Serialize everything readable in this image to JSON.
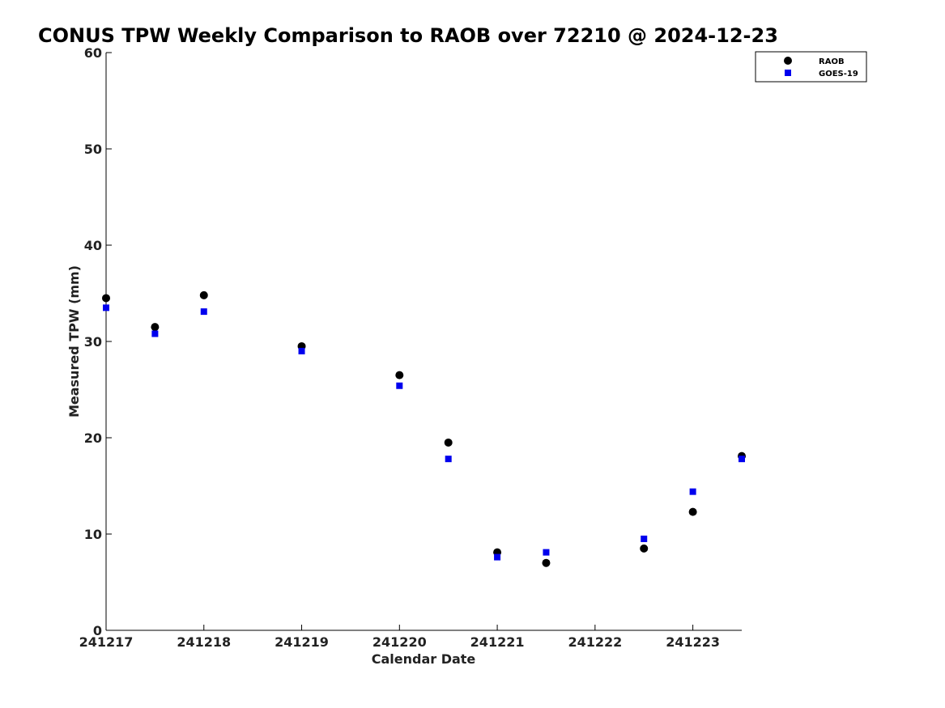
{
  "chart_data": {
    "type": "scatter",
    "title": "CONUS TPW Weekly Comparison to RAOB over 72210 @ 2024-12-23",
    "xlabel": "Calendar Date",
    "ylabel": "Measured TPW (mm)",
    "xlim": [
      "2024-12-17",
      "2024-12-23 12:00"
    ],
    "ylim": [
      0,
      60
    ],
    "x_ticks": [
      "241217",
      "241218",
      "241219",
      "241220",
      "241221",
      "241222",
      "241223"
    ],
    "y_ticks": [
      "0",
      "10",
      "20",
      "30",
      "40",
      "50",
      "60"
    ],
    "grid": false,
    "legend": {
      "position": "top-right"
    },
    "series": [
      {
        "name": "RAOB",
        "marker": "circle",
        "color": "#000000",
        "points": [
          {
            "x": "2024-12-17 00:00",
            "y": 34.5
          },
          {
            "x": "2024-12-17 12:00",
            "y": 31.5
          },
          {
            "x": "2024-12-18 00:00",
            "y": 34.8
          },
          {
            "x": "2024-12-19 00:00",
            "y": 29.5
          },
          {
            "x": "2024-12-20 00:00",
            "y": 26.5
          },
          {
            "x": "2024-12-20 12:00",
            "y": 19.5
          },
          {
            "x": "2024-12-21 00:00",
            "y": 8.1
          },
          {
            "x": "2024-12-21 12:00",
            "y": 7.0
          },
          {
            "x": "2024-12-22 12:00",
            "y": 8.5
          },
          {
            "x": "2024-12-23 00:00",
            "y": 12.3
          },
          {
            "x": "2024-12-23 12:00",
            "y": 18.1
          }
        ]
      },
      {
        "name": "GOES-19",
        "marker": "square",
        "color": "#0000ee",
        "points": [
          {
            "x": "2024-12-17 00:00",
            "y": 33.5
          },
          {
            "x": "2024-12-17 12:00",
            "y": 30.8
          },
          {
            "x": "2024-12-18 00:00",
            "y": 33.1
          },
          {
            "x": "2024-12-19 00:00",
            "y": 29.0
          },
          {
            "x": "2024-12-20 00:00",
            "y": 25.4
          },
          {
            "x": "2024-12-20 12:00",
            "y": 17.8
          },
          {
            "x": "2024-12-21 00:00",
            "y": 7.6
          },
          {
            "x": "2024-12-21 12:00",
            "y": 8.1
          },
          {
            "x": "2024-12-22 12:00",
            "y": 9.5
          },
          {
            "x": "2024-12-23 00:00",
            "y": 14.4
          },
          {
            "x": "2024-12-23 12:00",
            "y": 17.8
          }
        ]
      }
    ]
  }
}
